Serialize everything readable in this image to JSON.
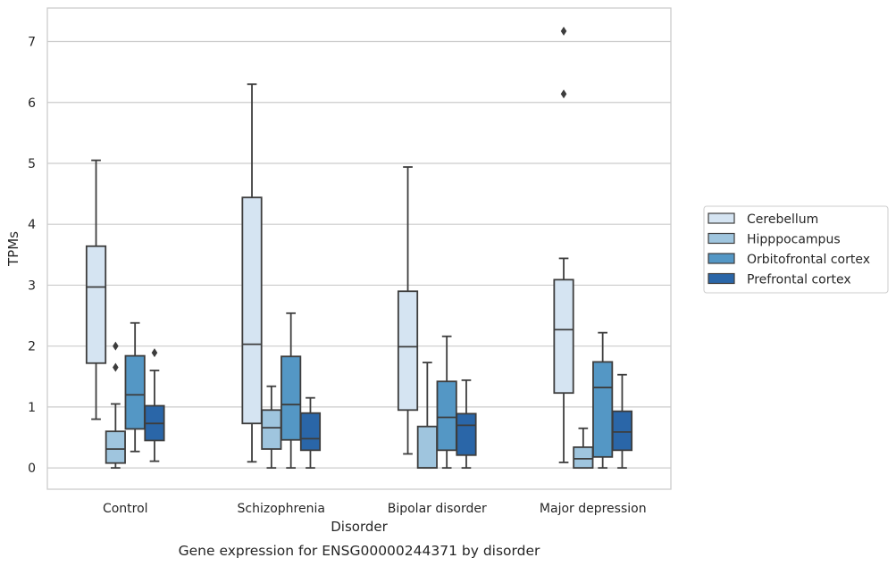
{
  "chart_data": {
    "type": "box",
    "title": "",
    "caption": "Gene expression for ENSG00000244371 by disorder",
    "xlabel": "Disorder",
    "ylabel": "TPMs",
    "ylim": [
      -0.35,
      7.55
    ],
    "yticks": [
      0,
      1,
      2,
      3,
      4,
      5,
      6,
      7
    ],
    "grid": "horizontal",
    "legend_position": "right",
    "categories": [
      "Control",
      "Schizophrenia",
      "Bipolar disorder",
      "Major depression"
    ],
    "series": [
      {
        "name": "Cerebellum",
        "color": "#d5e4f2",
        "boxes": [
          {
            "whislo": 0.8,
            "q1": 1.72,
            "med": 2.97,
            "q3": 3.64,
            "whishi": 5.05,
            "fliers": []
          },
          {
            "whislo": 0.1,
            "q1": 0.73,
            "med": 2.03,
            "q3": 4.44,
            "whishi": 6.3,
            "fliers": []
          },
          {
            "whislo": 0.23,
            "q1": 0.95,
            "med": 1.99,
            "q3": 2.9,
            "whishi": 4.94,
            "fliers": []
          },
          {
            "whislo": 0.09,
            "q1": 1.23,
            "med": 2.27,
            "q3": 3.09,
            "whishi": 3.44,
            "fliers": [
              6.14,
              7.17
            ]
          }
        ]
      },
      {
        "name": "Hipppocampus",
        "color": "#9fc5de",
        "boxes": [
          {
            "whislo": 0.0,
            "q1": 0.08,
            "med": 0.31,
            "q3": 0.6,
            "whishi": 1.05,
            "fliers": [
              1.65,
              2.0
            ]
          },
          {
            "whislo": 0.0,
            "q1": 0.31,
            "med": 0.66,
            "q3": 0.95,
            "whishi": 1.34,
            "fliers": []
          },
          {
            "whislo": 0.0,
            "q1": 0.0,
            "med": 0.0,
            "q3": 0.68,
            "whishi": 1.73,
            "fliers": []
          },
          {
            "whislo": 0.0,
            "q1": 0.0,
            "med": 0.15,
            "q3": 0.34,
            "whishi": 0.65,
            "fliers": []
          }
        ]
      },
      {
        "name": "Orbitofrontal cortex",
        "color": "#5497c5",
        "boxes": [
          {
            "whislo": 0.27,
            "q1": 0.64,
            "med": 1.2,
            "q3": 1.84,
            "whishi": 2.38,
            "fliers": []
          },
          {
            "whislo": 0.0,
            "q1": 0.46,
            "med": 1.04,
            "q3": 1.83,
            "whishi": 2.54,
            "fliers": []
          },
          {
            "whislo": 0.0,
            "q1": 0.29,
            "med": 0.83,
            "q3": 1.42,
            "whishi": 2.16,
            "fliers": []
          },
          {
            "whislo": 0.0,
            "q1": 0.18,
            "med": 1.32,
            "q3": 1.74,
            "whishi": 2.22,
            "fliers": []
          }
        ]
      },
      {
        "name": "Prefrontal cortex",
        "color": "#2a66a8",
        "boxes": [
          {
            "whislo": 0.11,
            "q1": 0.45,
            "med": 0.73,
            "q3": 1.02,
            "whishi": 1.6,
            "fliers": [
              1.89
            ]
          },
          {
            "whislo": 0.0,
            "q1": 0.29,
            "med": 0.48,
            "q3": 0.9,
            "whishi": 1.15,
            "fliers": []
          },
          {
            "whislo": 0.0,
            "q1": 0.21,
            "med": 0.7,
            "q3": 0.89,
            "whishi": 1.44,
            "fliers": []
          },
          {
            "whislo": 0.0,
            "q1": 0.29,
            "med": 0.59,
            "q3": 0.93,
            "whishi": 1.53,
            "fliers": []
          }
        ]
      }
    ]
  }
}
